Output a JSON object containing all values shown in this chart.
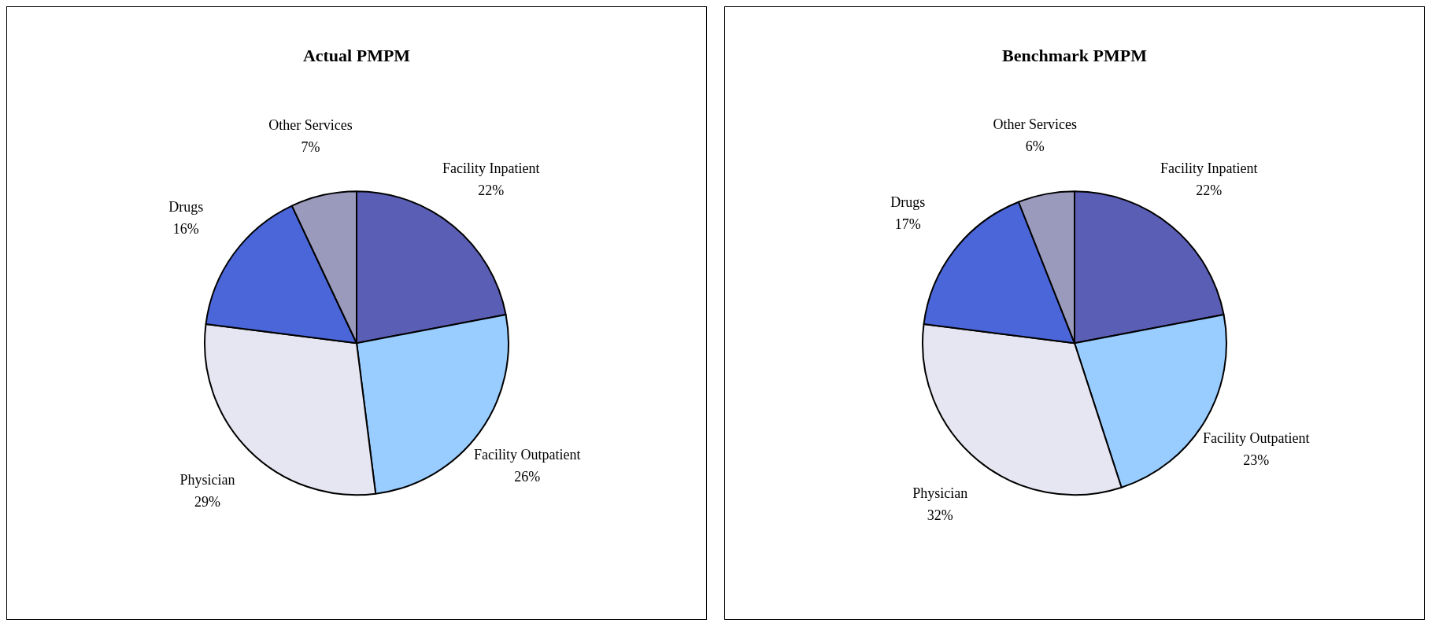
{
  "chart_data": [
    {
      "type": "pie",
      "title": "Actual PMPM",
      "categories": [
        "Facility Inpatient",
        "Facility Outpatient",
        "Physician",
        "Drugs",
        "Other Services"
      ],
      "values": [
        22,
        26,
        29,
        16,
        7
      ],
      "value_labels": [
        "22%",
        "26%",
        "29%",
        "16%",
        "7%"
      ],
      "colors": [
        "#5a5eb4",
        "#99ccff",
        "#e6e6f2",
        "#4a66d8",
        "#9a9abc"
      ],
      "legend": false
    },
    {
      "type": "pie",
      "title": "Benchmark PMPM",
      "categories": [
        "Facility Inpatient",
        "Facility Outpatient",
        "Physician",
        "Drugs",
        "Other Services"
      ],
      "values": [
        22,
        23,
        32,
        17,
        6
      ],
      "value_labels": [
        "22%",
        "23%",
        "32%",
        "17%",
        "6%"
      ],
      "colors": [
        "#5a5eb4",
        "#99ccff",
        "#e6e6f2",
        "#4a66d8",
        "#9a9abc"
      ],
      "legend": false
    }
  ]
}
